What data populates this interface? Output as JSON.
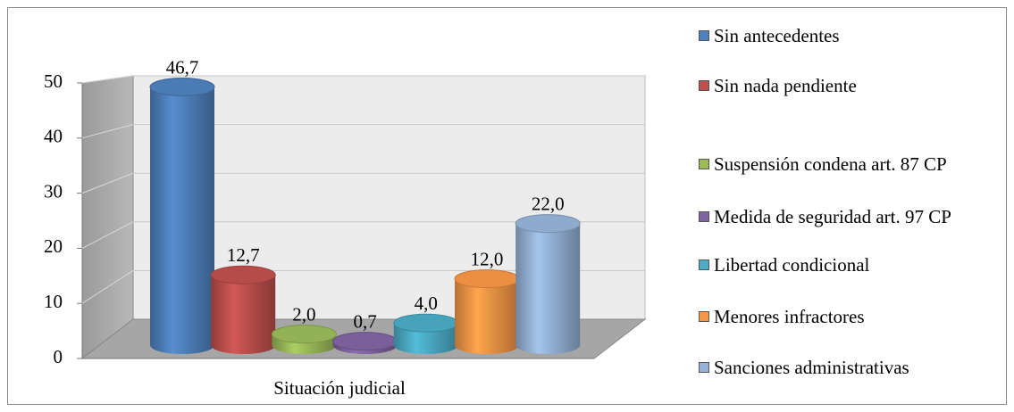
{
  "chart_data": {
    "type": "bar",
    "categories": [
      "Situación judicial"
    ],
    "series": [
      {
        "name": "Sin antecedentes",
        "color": "#4f81bd",
        "values": [
          46.7
        ],
        "value_labels": [
          "46,7"
        ]
      },
      {
        "name": "Sin nada pendiente",
        "color": "#c0504d",
        "values": [
          12.7
        ],
        "value_labels": [
          "12,7"
        ]
      },
      {
        "name": "Suspensión condena art. 87 CP",
        "color": "#9bbb59",
        "values": [
          2.0
        ],
        "value_labels": [
          "2,0"
        ]
      },
      {
        "name": "Medida de seguridad art. 97 CP",
        "color": "#8064a2",
        "values": [
          0.7
        ],
        "value_labels": [
          "0,7"
        ]
      },
      {
        "name": "Libertad condicional",
        "color": "#4bacc6",
        "values": [
          4.0
        ],
        "value_labels": [
          "4,0"
        ]
      },
      {
        "name": "Menores infractores",
        "color": "#f79646",
        "values": [
          12.0
        ],
        "value_labels": [
          "12,0"
        ]
      },
      {
        "name": "Sanciones administrativas",
        "color": "#95b3d7",
        "values": [
          22.0
        ],
        "value_labels": [
          "22,0"
        ]
      }
    ],
    "ylim": [
      0,
      50
    ],
    "yticks": [
      0,
      10,
      20,
      30,
      40,
      50
    ],
    "grid": true,
    "legend": "right"
  }
}
